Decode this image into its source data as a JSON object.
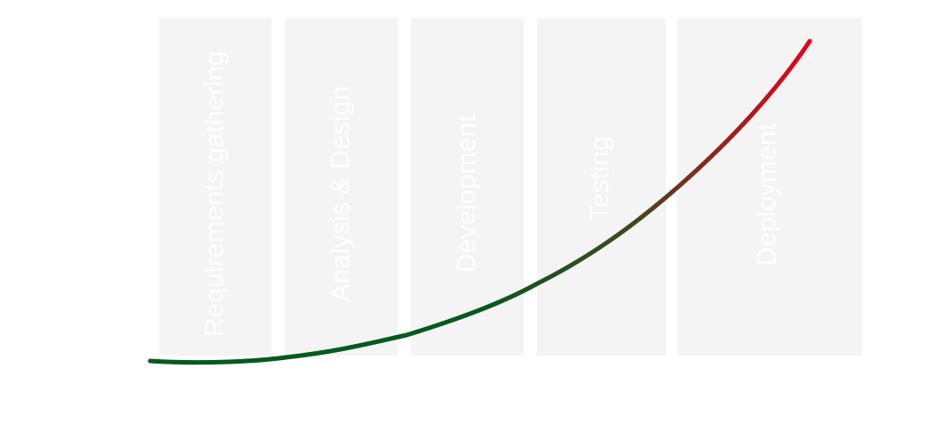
{
  "phases": [
    {
      "label": "Requirements gathering"
    },
    {
      "label": "Analysis & Design"
    },
    {
      "label": "Development"
    },
    {
      "label": "Testing"
    },
    {
      "label": "Deployment"
    }
  ],
  "colors": {
    "band": "#f4f4f4",
    "label": "#ffffff",
    "curve_start": "#005a20",
    "curve_mid": "#3a4a1e",
    "curve_end": "#e8001c"
  }
}
